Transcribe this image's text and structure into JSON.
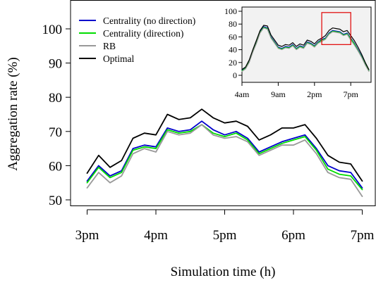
{
  "chart_data": [
    {
      "type": "line",
      "xlabel": "Simulation time (h)",
      "ylabel": "Aggregation rate (%)",
      "xlim": [
        15,
        19
      ],
      "ylim": [
        48,
        103
      ],
      "xticks": [
        {
          "value": 15,
          "label": "3pm"
        },
        {
          "value": 16,
          "label": "4pm"
        },
        {
          "value": 17,
          "label": "5pm"
        },
        {
          "value": 18,
          "label": "6pm"
        },
        {
          "value": 19,
          "label": "7pm"
        }
      ],
      "yticks": [
        50,
        60,
        70,
        80,
        90,
        100
      ],
      "legend_position": "top-left",
      "grid": false,
      "x": [
        15.0,
        15.167,
        15.333,
        15.5,
        15.667,
        15.833,
        16.0,
        16.167,
        16.333,
        16.5,
        16.667,
        16.833,
        17.0,
        17.167,
        17.333,
        17.5,
        17.667,
        17.833,
        18.0,
        18.167,
        18.333,
        18.5,
        18.667,
        18.833,
        19.0
      ],
      "series": [
        {
          "name": "Centrality (no direction)",
          "color": "#0000cc",
          "values": [
            55.5,
            60.0,
            57.0,
            58.5,
            65.0,
            66.0,
            65.5,
            71.0,
            70.0,
            70.5,
            73.0,
            70.5,
            69.0,
            70.0,
            68.0,
            64.0,
            65.5,
            67.0,
            68.0,
            69.0,
            65.0,
            60.0,
            58.5,
            58.0,
            53.5
          ]
        },
        {
          "name": "Centrality (direction)",
          "color": "#00dd00",
          "values": [
            55.0,
            59.5,
            56.5,
            58.0,
            64.5,
            65.5,
            65.0,
            70.5,
            69.5,
            70.0,
            72.0,
            69.5,
            68.5,
            69.5,
            67.5,
            63.5,
            65.0,
            66.5,
            67.5,
            68.5,
            64.5,
            59.0,
            57.5,
            57.0,
            53.0
          ]
        },
        {
          "name": "RB",
          "color": "#999999",
          "values": [
            53.5,
            58.0,
            55.0,
            57.0,
            63.5,
            65.0,
            64.0,
            70.0,
            69.0,
            69.5,
            72.0,
            69.0,
            68.0,
            68.5,
            67.0,
            63.0,
            64.5,
            66.0,
            66.0,
            67.5,
            63.5,
            58.0,
            56.5,
            56.0,
            51.0
          ]
        },
        {
          "name": "Optimal",
          "color": "#000000",
          "values": [
            57.8,
            63.0,
            59.5,
            61.5,
            68.0,
            69.5,
            69.0,
            75.0,
            73.5,
            74.0,
            76.5,
            74.0,
            72.5,
            73.0,
            71.5,
            67.5,
            69.0,
            71.0,
            71.0,
            72.0,
            68.0,
            63.0,
            61.0,
            60.5,
            55.5
          ]
        }
      ]
    },
    {
      "type": "line",
      "role": "inset",
      "xlim": [
        4,
        21.8
      ],
      "ylim": [
        0,
        100
      ],
      "xticks": [
        {
          "value": 4,
          "label": "4am"
        },
        {
          "value": 9,
          "label": "9am"
        },
        {
          "value": 14,
          "label": "2pm"
        },
        {
          "value": 19,
          "label": "7pm"
        }
      ],
      "yticks": [
        0,
        20,
        40,
        60,
        80,
        100
      ],
      "highlight_box": {
        "x": [
          15,
          19
        ],
        "y": [
          48,
          98
        ]
      },
      "x": [
        4.0,
        4.5,
        5.0,
        5.5,
        6.0,
        6.5,
        7.0,
        7.5,
        8.0,
        8.5,
        9.0,
        9.5,
        10.0,
        10.5,
        11.0,
        11.5,
        12.0,
        12.5,
        13.0,
        13.5,
        14.0,
        14.5,
        15.0,
        15.5,
        16.0,
        16.5,
        17.0,
        17.5,
        18.0,
        18.5,
        19.0,
        19.5,
        20.0,
        20.5,
        21.0,
        21.5
      ],
      "series": [
        {
          "name": "Centrality (no direction)",
          "color": "#0000cc",
          "values": [
            8,
            12,
            22,
            38,
            52,
            68,
            76,
            74,
            60,
            52,
            44,
            42,
            45,
            44,
            48,
            42,
            46,
            44,
            52,
            50,
            46,
            52,
            56,
            58,
            66,
            70,
            69,
            68,
            64,
            66,
            58,
            50,
            40,
            30,
            18,
            8
          ]
        },
        {
          "name": "Centrality (direction)",
          "color": "#00dd00",
          "values": [
            7,
            11,
            21,
            37,
            51,
            67,
            75,
            73,
            59,
            51,
            43,
            41,
            44,
            43,
            47,
            41,
            45,
            43,
            51,
            49,
            45,
            51,
            55,
            57,
            65,
            69,
            68,
            67,
            63,
            65,
            57,
            49,
            39,
            29,
            17,
            7
          ]
        },
        {
          "name": "RB",
          "color": "#999999",
          "values": [
            6,
            10,
            20,
            36,
            50,
            66,
            74,
            72,
            58,
            50,
            42,
            40,
            43,
            42,
            46,
            40,
            44,
            42,
            50,
            48,
            44,
            50,
            53,
            56,
            64,
            68,
            67,
            66,
            62,
            64,
            55,
            47,
            38,
            28,
            16,
            6
          ]
        },
        {
          "name": "Optimal",
          "color": "#000000",
          "values": [
            9,
            13,
            24,
            40,
            55,
            70,
            78,
            77,
            63,
            55,
            47,
            45,
            48,
            47,
            51,
            45,
            49,
            47,
            55,
            53,
            49,
            55,
            58,
            62,
            70,
            74,
            73,
            72,
            68,
            70,
            62,
            54,
            44,
            33,
            20,
            9
          ]
        }
      ]
    }
  ]
}
